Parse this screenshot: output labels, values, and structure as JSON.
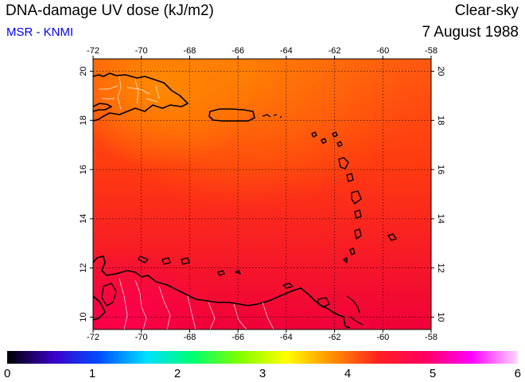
{
  "header": {
    "title": "DNA-damage UV dose (kJ/m2)",
    "source": "MSR - KNMI",
    "source_color": "#0000ff",
    "condition": "Clear-sky",
    "date": "7 August 1988"
  },
  "map": {
    "lon_range": [
      -72,
      -58
    ],
    "lat_range": [
      9.5,
      20.5
    ],
    "lon_ticks": [
      -72,
      -70,
      -68,
      -66,
      -64,
      -62,
      -60,
      -58
    ],
    "lat_ticks": [
      10,
      12,
      14,
      16,
      18,
      20
    ],
    "lon_labels": [
      "-72",
      "-70",
      "-68",
      "-66",
      "-64",
      "-62",
      "-60",
      "-58"
    ],
    "lat_labels": [
      "10",
      "12",
      "14",
      "16",
      "18",
      "20"
    ],
    "grid": true,
    "field_colors": {
      "low": "#ff8a00",
      "mid": "#ff3a10",
      "high": "#f0003a",
      "peak": "#ff0050"
    }
  },
  "colorbar": {
    "min": 0,
    "max": 6,
    "tick_labels": [
      "0",
      "1",
      "2",
      "3",
      "4",
      "5",
      "6"
    ],
    "stops": [
      "#000000",
      "#3a00c8",
      "#0050ff",
      "#00e0ff",
      "#00ff70",
      "#80ff00",
      "#ffff00",
      "#ff9000",
      "#ff2020",
      "#ff0060",
      "#ff00ff",
      "#ffd8ff"
    ]
  }
}
